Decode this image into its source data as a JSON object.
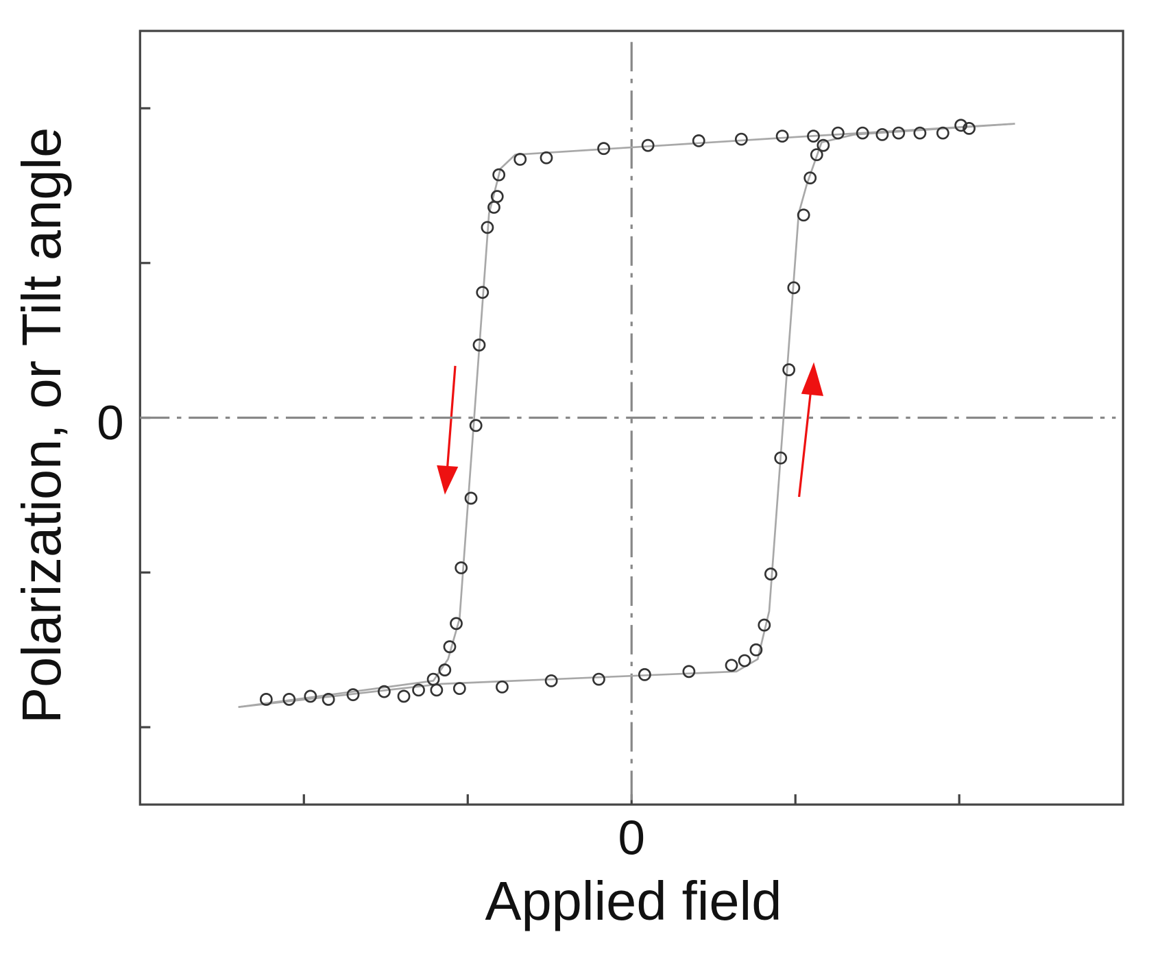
{
  "chart_data": {
    "type": "scatter",
    "x_label": "Applied field",
    "y_label": "Polarization, or Tilt angle",
    "xlim": [
      -3,
      3
    ],
    "ylim": [
      -2.5,
      2.5
    ],
    "xticks": [
      -2,
      -1,
      0,
      1,
      2
    ],
    "xtick_labels": [
      null,
      null,
      "0",
      null,
      null
    ],
    "yticks": [
      -2,
      -1,
      0,
      1,
      2
    ],
    "ytick_labels": [
      null,
      null,
      "0",
      null,
      null
    ],
    "zero_lines": true,
    "series": [
      {
        "type": "line",
        "color": "#a8a8a8",
        "x": [
          -2.4,
          -1.16,
          0.64,
          0.77,
          0.84,
          1.02,
          1.07,
          1.16,
          1.36,
          2.34,
          null,
          2.34,
          1.09,
          -0.71,
          -0.8,
          -0.87,
          -1.05,
          -1.12,
          -1.21,
          -2.4
        ],
        "values": [
          -1.87,
          -1.72,
          -1.64,
          -1.56,
          -1.25,
          1.32,
          1.51,
          1.78,
          1.83,
          1.9,
          null,
          1.9,
          1.82,
          1.7,
          1.61,
          1.32,
          -1.3,
          -1.56,
          -1.7,
          -1.87
        ]
      },
      {
        "type": "scatter",
        "color": "#333333",
        "x": [
          -2.23,
          -2.09,
          -1.96,
          -1.85,
          -1.7,
          -1.51,
          -1.39,
          -1.3,
          -1.19,
          -1.21,
          -1.14,
          -1.05,
          -0.79,
          -0.49,
          -0.2,
          0.08,
          0.35,
          0.61,
          0.69,
          0.76,
          0.81,
          0.85,
          0.91,
          0.96,
          0.99,
          1.05,
          1.09,
          1.13,
          1.17,
          1.11,
          1.26,
          1.41,
          1.53,
          1.63,
          1.76,
          1.9,
          2.01,
          2.06,
          0.92,
          0.67,
          0.41,
          0.1,
          -0.17,
          -0.52,
          -0.68,
          -0.81,
          -0.82,
          -0.84,
          -0.88,
          -0.91,
          -0.93,
          -0.95,
          -0.98,
          -1.04,
          -1.07,
          -1.11
        ],
        "values": [
          -1.82,
          -1.82,
          -1.8,
          -1.82,
          -1.79,
          -1.77,
          -1.8,
          -1.76,
          -1.76,
          -1.69,
          -1.63,
          -1.75,
          -1.74,
          -1.7,
          -1.69,
          -1.66,
          -1.64,
          -1.6,
          -1.57,
          -1.5,
          -1.34,
          -1.01,
          -0.26,
          0.31,
          0.84,
          1.31,
          1.55,
          1.7,
          1.76,
          1.82,
          1.84,
          1.84,
          1.83,
          1.84,
          1.84,
          1.84,
          1.89,
          1.87,
          1.82,
          1.8,
          1.79,
          1.76,
          1.74,
          1.68,
          1.67,
          1.57,
          1.43,
          1.36,
          1.23,
          0.81,
          0.47,
          -0.05,
          -0.52,
          -0.97,
          -1.33,
          -1.48
        ]
      }
    ]
  }
}
